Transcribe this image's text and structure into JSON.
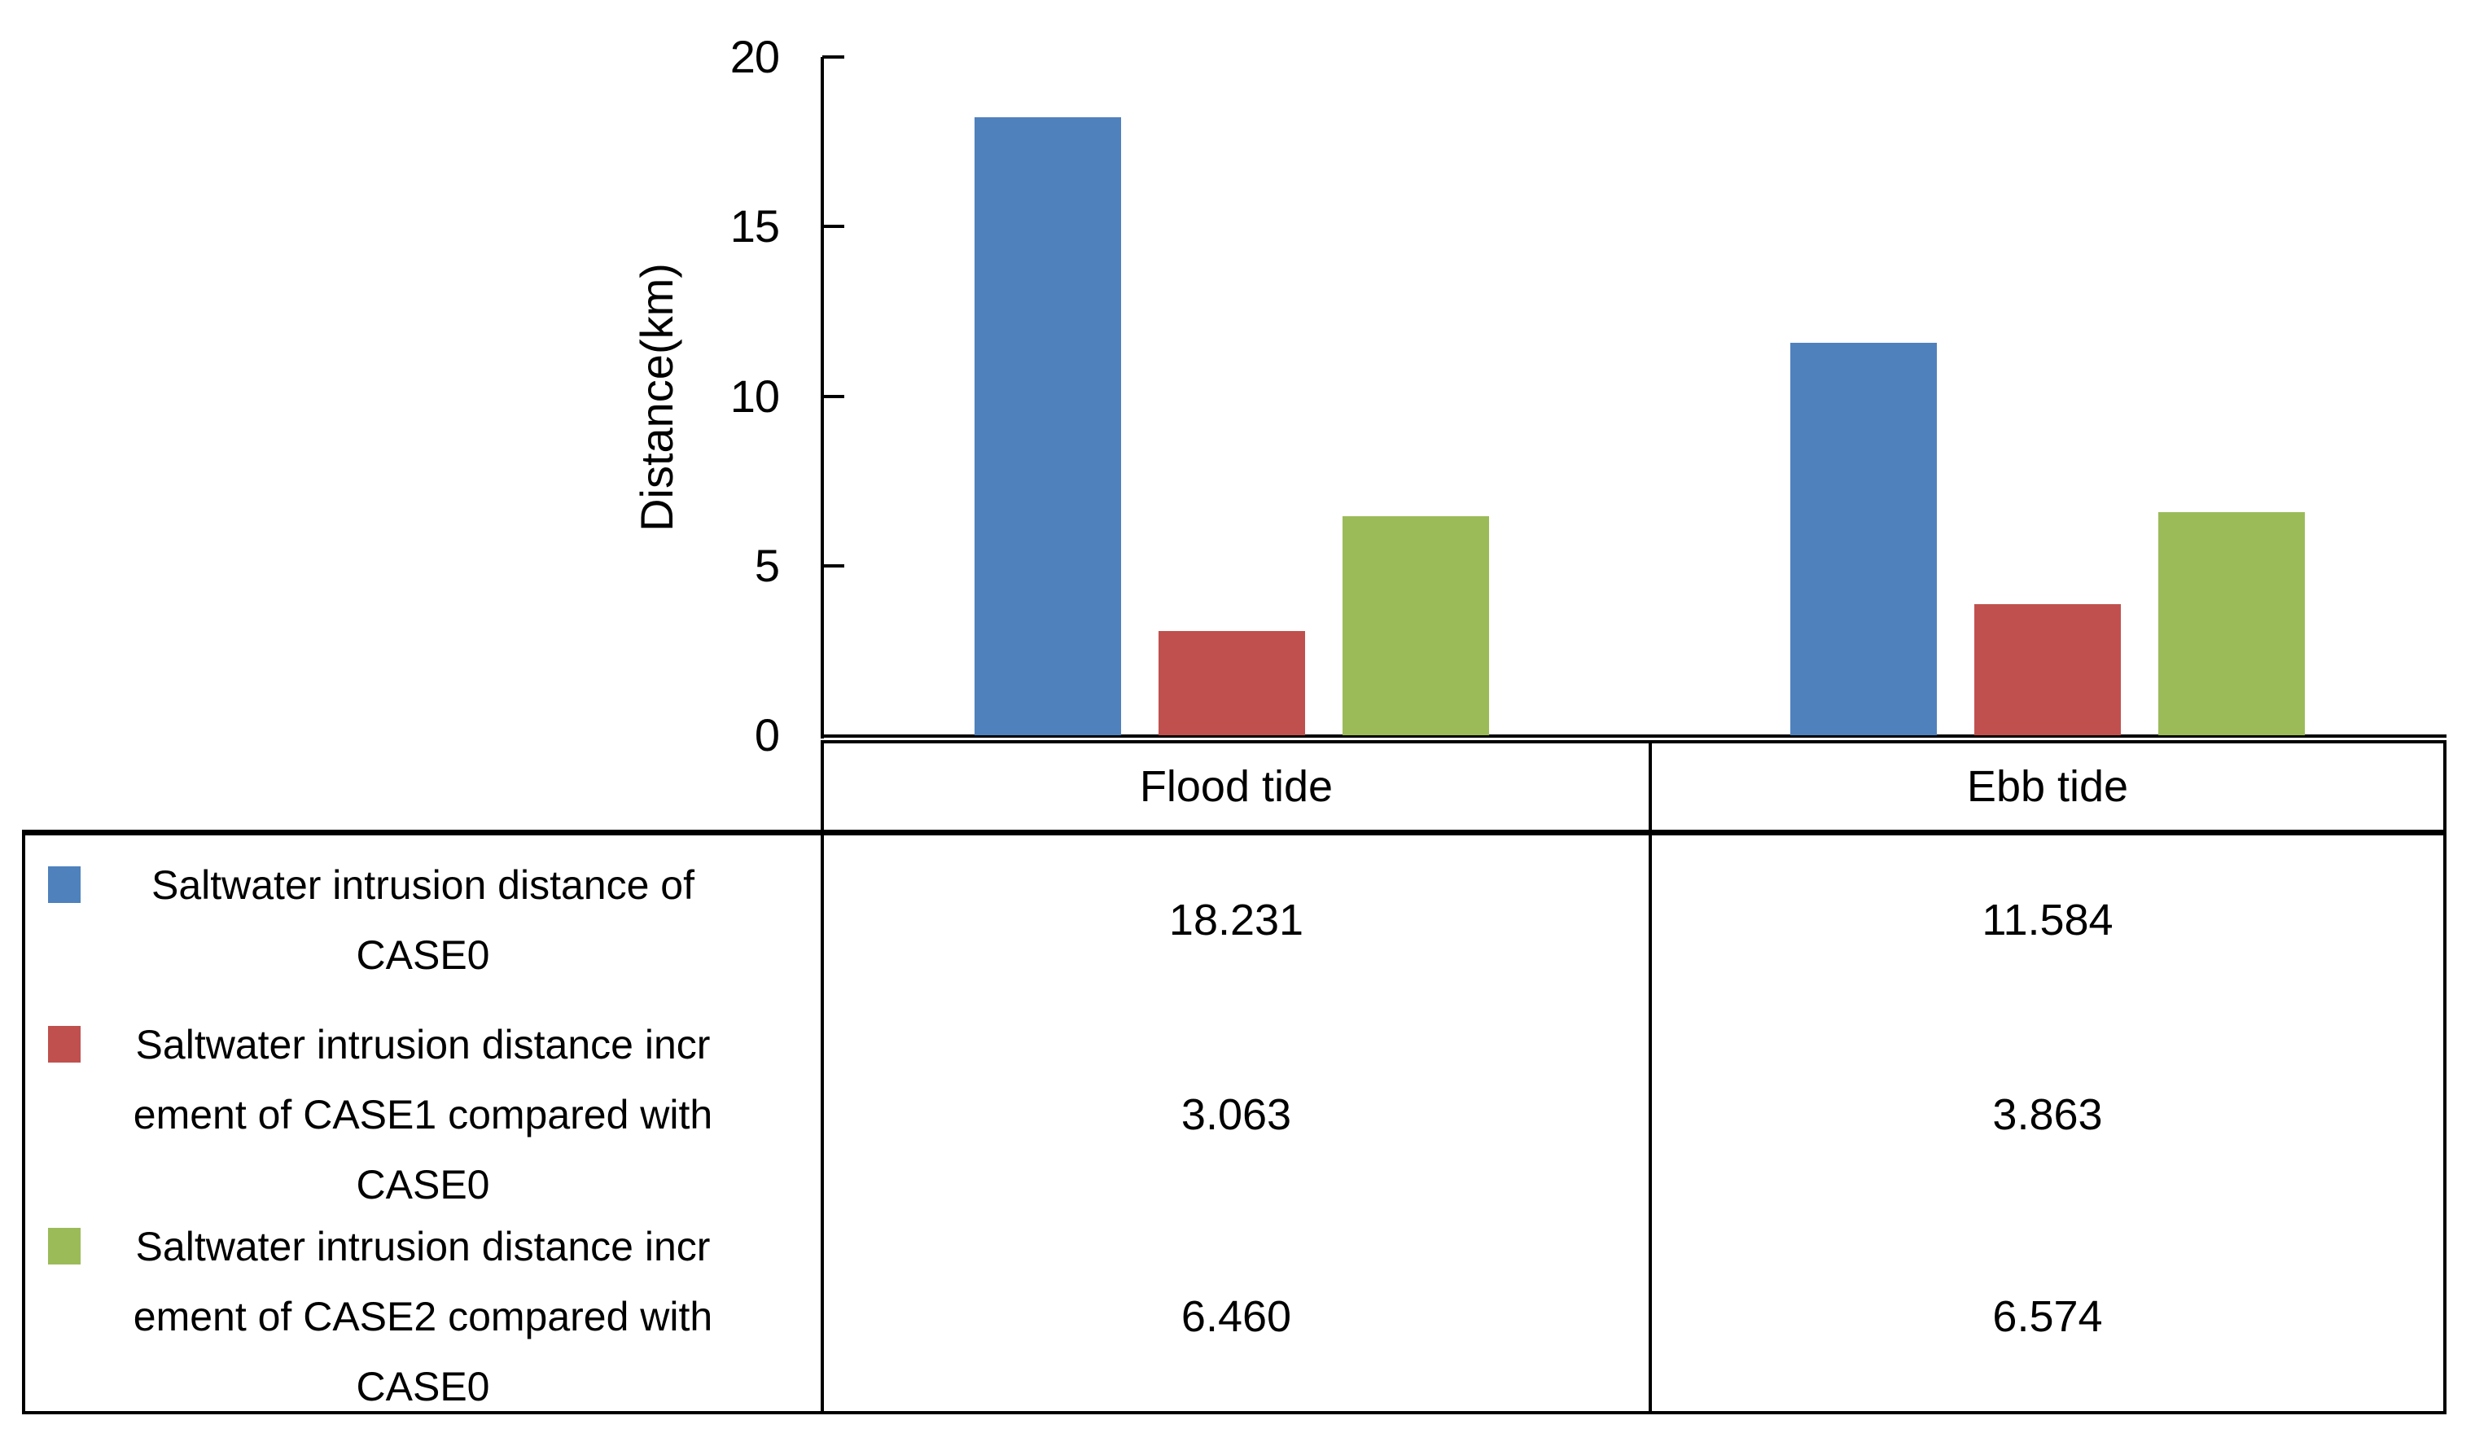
{
  "chart_data": {
    "type": "bar",
    "categories": [
      "Flood tide",
      "Ebb tide"
    ],
    "series": [
      {
        "name": "Saltwater intrusion distance of CASE0",
        "color": "#4F81BD",
        "values": [
          18.231,
          11.584
        ]
      },
      {
        "name": "Saltwater intrusion distance increment of CASE1 compared with CASE0",
        "color": "#C0504D",
        "values": [
          3.063,
          3.863
        ]
      },
      {
        "name": "Saltwater intrusion distance increment of CASE2 compared with CASE0",
        "color": "#9BBB59",
        "values": [
          6.46,
          6.574
        ]
      }
    ],
    "title": "",
    "xlabel": "",
    "ylabel": "Distance(km)",
    "ylim": [
      0,
      20
    ],
    "yticks": [
      0,
      5,
      10,
      15,
      20
    ],
    "grid": false,
    "legend_position": "left-of-data-table"
  },
  "axis": {
    "y_title": "Distance(km)",
    "tick_labels": [
      "0",
      "5",
      "10",
      "15",
      "20"
    ]
  },
  "table": {
    "columns": [
      "Flood tide",
      "Ebb tide"
    ],
    "rows": [
      {
        "swatch_color": "#4F81BD",
        "legend_label": "Saltwater intrusion distance of CASE0",
        "legend_lines": [
          "Saltwater intrusion distance of",
          "CASE0"
        ],
        "values": [
          "18.231",
          "11.584"
        ]
      },
      {
        "swatch_color": "#C0504D",
        "legend_label": "Saltwater intrusion distance increment of CASE1 compared with CASE0",
        "legend_lines": [
          "Saltwater intrusion distance incr",
          "ement of CASE1 compared with",
          "CASE0"
        ],
        "values": [
          "3.063",
          "3.863"
        ]
      },
      {
        "swatch_color": "#9BBB59",
        "legend_label": "Saltwater intrusion distance increment of CASE2 compared with CASE0",
        "legend_lines": [
          "Saltwater intrusion distance incr",
          "ement of CASE2 compared with",
          "CASE0"
        ],
        "values": [
          "6.460",
          "6.574"
        ]
      }
    ]
  }
}
